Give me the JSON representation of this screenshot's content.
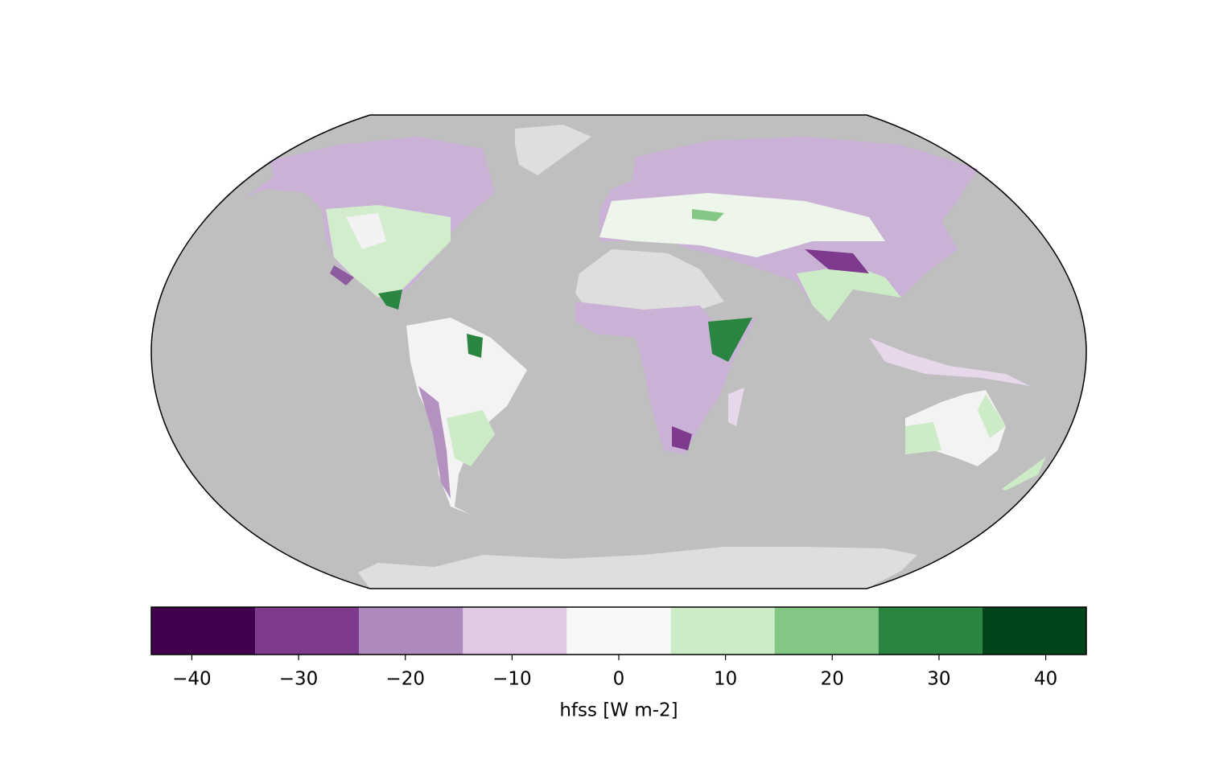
{
  "chart_data": {
    "type": "colorbar-map",
    "colorbar": {
      "label": "hfss [W m-2]",
      "bounds": [
        -43.8,
        -34.07,
        -24.33,
        -14.6,
        -4.87,
        4.87,
        14.6,
        24.33,
        34.07,
        43.8
      ],
      "colors": [
        "#40004b",
        "#7e3a8c",
        "#ad89bd",
        "#e0cae3",
        "#f7f7f7",
        "#cdebc6",
        "#84c683",
        "#2a8540",
        "#00441b"
      ],
      "xlim": [
        -43.8,
        43.8
      ],
      "xticks": [
        {
          "value": -40,
          "label": "−40"
        },
        {
          "value": -30,
          "label": "−30"
        },
        {
          "value": -20,
          "label": "−20"
        },
        {
          "value": -10,
          "label": "−10"
        },
        0,
        10,
        20,
        30,
        40
      ]
    }
  }
}
